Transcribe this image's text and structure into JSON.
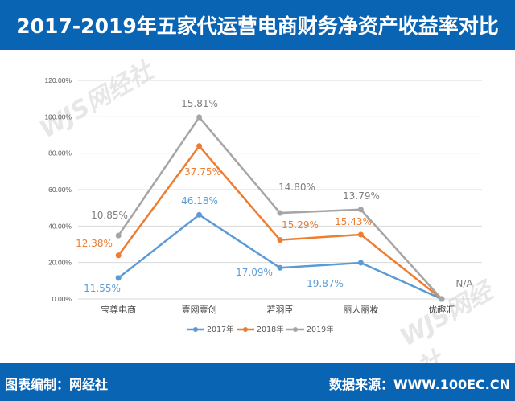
{
  "header": {
    "title": "2017-2019年五家代运营电商财务净资产收益率对比"
  },
  "footer": {
    "left": "图表编制：网经社",
    "right": "数据来源：WWW.100EC.CN"
  },
  "watermark": "WJS网经社 WWW.100EC.CN",
  "chart_data": {
    "type": "line",
    "stacked": true,
    "categories": [
      "宝尊电商",
      "壹网壹创",
      "若羽臣",
      "丽人丽妆",
      "优趣汇"
    ],
    "series": [
      {
        "name": "2017年",
        "color": "#5b9bd5",
        "values": [
          11.55,
          46.18,
          17.09,
          19.87,
          null
        ],
        "labels": [
          "11.55%",
          "46.18%",
          "17.09%",
          "19.87%",
          ""
        ]
      },
      {
        "name": "2018年",
        "color": "#ed7d31",
        "values": [
          12.38,
          37.75,
          15.29,
          15.43,
          null
        ],
        "labels": [
          "12.38%",
          "37.75%",
          "15.29%",
          "15.43%",
          ""
        ]
      },
      {
        "name": "2019年",
        "color": "#a5a5a5",
        "values": [
          10.85,
          15.81,
          14.8,
          13.79,
          null
        ],
        "labels": [
          "10.85%",
          "15.81%",
          "14.80%",
          "13.79%",
          "N/A"
        ]
      }
    ],
    "yticks": [
      "0.00%",
      "20.00%",
      "40.00%",
      "60.00%",
      "80.00%",
      "100.00%",
      "120.00%"
    ],
    "ylim": [
      0,
      120
    ],
    "grid": true,
    "legend": "bottom"
  }
}
